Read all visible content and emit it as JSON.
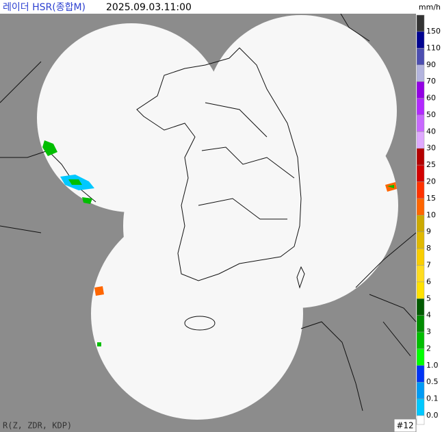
{
  "header": {
    "title": "레이더 HSR(종합M)",
    "timestamp": "2025.09.03.11:00",
    "unit": "mm/h"
  },
  "legend": {
    "labels": [
      "150",
      "110",
      "90",
      "70",
      "60",
      "50",
      "40",
      "30",
      "25",
      "20",
      "15",
      "10",
      "9",
      "8",
      "7",
      "6",
      "5",
      "4",
      "3",
      "2",
      "1.0",
      "0.5",
      "0.1",
      "0.0"
    ],
    "colors": [
      "#333333",
      "#000390",
      "#4c4eb1",
      "#b3b4de",
      "#9300e4",
      "#b229ff",
      "#c869ff",
      "#dfa9ff",
      "#b40000",
      "#d20000",
      "#ff3200",
      "#ff6600",
      "#ccaa00",
      "#e0b900",
      "#f9cd00",
      "#ffdc1f",
      "#ffe100",
      "#005a00",
      "#008c00",
      "#00be00",
      "#00ff00",
      "#0033f5",
      "#009bf5",
      "#00c8ff",
      "#ffffff"
    ]
  },
  "footer": {
    "method": "R(Z, ZDR, KDP)",
    "site_count": "#12"
  }
}
